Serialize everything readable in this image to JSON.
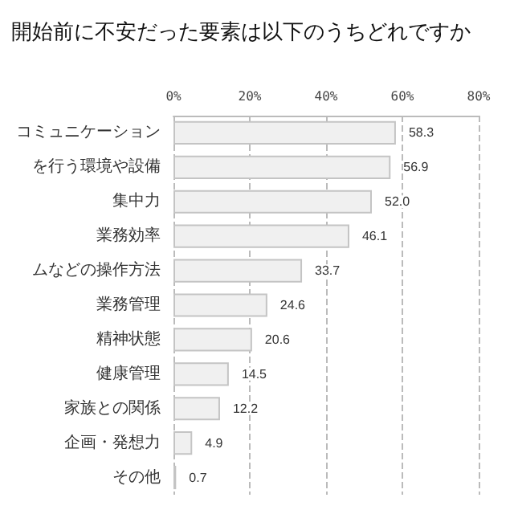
{
  "chart_data": {
    "type": "bar",
    "orientation": "horizontal",
    "title": "開始前に不安だった要素は以下のうちどれですか",
    "categories": [
      "コミュニケーション",
      "を行う環境や設備",
      "集中力",
      "業務効率",
      "ムなどの操作方法",
      "業務管理",
      "精神状態",
      "健康管理",
      "家族との関係",
      "企画・発想力",
      "その他"
    ],
    "values": [
      58.3,
      56.9,
      52.0,
      46.1,
      33.7,
      24.6,
      20.6,
      14.5,
      12.2,
      4.9,
      0.7
    ],
    "value_labels": [
      "58.3",
      "56.9",
      "52.0",
      "46.1",
      "33.7",
      "24.6",
      "20.6",
      "14.5",
      "12.2",
      "4.9",
      "0.7"
    ],
    "color": "#f0f0f0",
    "xlim": [
      0,
      80
    ],
    "xticks": [
      {
        "value": 0,
        "label": "0%"
      },
      {
        "value": 20,
        "label": "20%"
      },
      {
        "value": 40,
        "label": "40%"
      },
      {
        "value": 60,
        "label": "60%"
      },
      {
        "value": 80,
        "label": "80%"
      }
    ],
    "grid": "x"
  }
}
